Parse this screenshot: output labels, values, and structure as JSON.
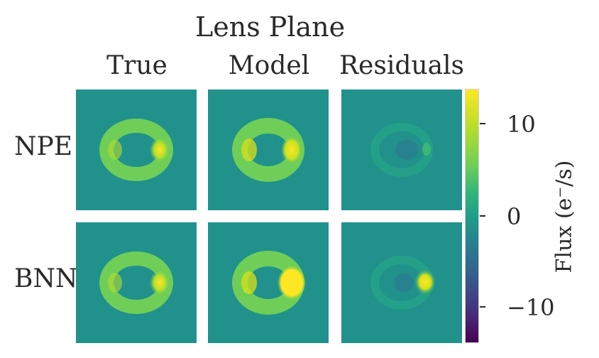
{
  "title": "Lens Plane",
  "columns": [
    "True",
    "Model",
    "Residuals"
  ],
  "rows": [
    "NPE",
    "BNN"
  ],
  "colorbar": {
    "label": "Flux (e⁻/s)",
    "ticks": [
      {
        "value": 10,
        "label": "10"
      },
      {
        "value": 0,
        "label": "0"
      },
      {
        "value": -10,
        "label": "−10"
      }
    ],
    "range": [
      -14,
      14
    ],
    "colormap": "viridis"
  },
  "panels": [
    {
      "row": "NPE",
      "column": "True",
      "kind": "ring"
    },
    {
      "row": "NPE",
      "column": "Model",
      "kind": "ring"
    },
    {
      "row": "NPE",
      "column": "Residuals",
      "kind": "residual-faint"
    },
    {
      "row": "BNN",
      "column": "True",
      "kind": "ring"
    },
    {
      "row": "BNN",
      "column": "Model",
      "kind": "ring-bright"
    },
    {
      "row": "BNN",
      "column": "Residuals",
      "kind": "residual-spot"
    }
  ]
}
